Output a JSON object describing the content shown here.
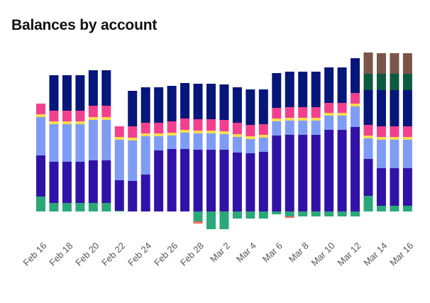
{
  "chart_data": {
    "type": "bar",
    "stacked": true,
    "title": "Balances by account",
    "xlabel": "",
    "ylabel": "",
    "grid": false,
    "legend": "none",
    "categories": [
      "Feb 16",
      "Feb 17",
      "Feb 18",
      "Feb 19",
      "Feb 20",
      "Feb 21",
      "Feb 22",
      "Feb 23",
      "Feb 24",
      "Feb 25",
      "Feb 26",
      "Feb 27",
      "Feb 28",
      "Mar 1",
      "Mar 2",
      "Mar 3",
      "Mar 4",
      "Mar 5",
      "Mar 6",
      "Mar 7",
      "Mar 8",
      "Mar 9",
      "Mar 10",
      "Mar 11",
      "Mar 12",
      "Mar 13",
      "Mar 14",
      "Mar 15",
      "Mar 16"
    ],
    "tick_labels": [
      "Feb 16",
      "Feb 18",
      "Feb 20",
      "Feb 22",
      "Feb 24",
      "Feb 26",
      "Feb 28",
      "Mar 2",
      "Mar 4",
      "Mar 6",
      "Mar 8",
      "Mar 10",
      "Mar 12",
      "Mar 14",
      "Mar 16"
    ],
    "series": [
      {
        "color": "#2aa878",
        "values": [
          21,
          12,
          12,
          12,
          12,
          12,
          1,
          0,
          0,
          0,
          0,
          0,
          -14,
          -25,
          -25,
          -10,
          -10,
          -10,
          -4,
          -7,
          -7,
          -7,
          -7,
          -7,
          -7,
          22,
          8,
          8,
          8
        ]
      },
      {
        "color": "#3112a8",
        "values": [
          58,
          58,
          58,
          58,
          60,
          60,
          43,
          43,
          52,
          86,
          88,
          88,
          87,
          87,
          87,
          83,
          82,
          84,
          107,
          108,
          108,
          108,
          115,
          115,
          119,
          52,
          53,
          53,
          53
        ]
      },
      {
        "color": "#7f9cf5",
        "values": [
          54,
          53,
          53,
          53,
          57,
          57,
          57,
          57,
          54,
          20,
          19,
          23,
          23,
          23,
          22,
          22,
          20,
          20,
          20,
          20,
          20,
          20,
          20,
          20,
          29,
          29,
          40,
          40,
          40
        ]
      },
      {
        "color": "#f8dc4c",
        "values": [
          4,
          4,
          4,
          4,
          4,
          4,
          4,
          4,
          4,
          4,
          4,
          4,
          4,
          4,
          4,
          4,
          4,
          4,
          4,
          4,
          4,
          4,
          4,
          4,
          4,
          4,
          4,
          4,
          4
        ]
      },
      {
        "color": "#f2408f",
        "values": [
          15,
          15,
          15,
          15,
          16,
          16,
          15,
          16,
          15,
          15,
          16,
          16,
          16,
          16,
          16,
          16,
          16,
          15,
          15,
          15,
          15,
          15,
          14,
          14,
          15,
          15,
          15,
          15,
          15
        ]
      },
      {
        "color": "#06167a",
        "values": [
          0,
          50,
          50,
          50,
          50,
          50,
          0,
          50,
          50,
          50,
          50,
          50,
          50,
          50,
          50,
          50,
          50,
          49,
          49,
          50,
          50,
          50,
          50,
          50,
          49,
          49,
          51,
          51,
          51
        ]
      },
      {
        "color": "#0c5a3e",
        "values": [
          0,
          0,
          0,
          0,
          0,
          0,
          0,
          0,
          0,
          0,
          0,
          0,
          0,
          0,
          0,
          0,
          0,
          0,
          0,
          0,
          0,
          0,
          0,
          0,
          0,
          23,
          23,
          23,
          23
        ]
      },
      {
        "color": "#7a5548",
        "values": [
          0,
          0,
          0,
          0,
          0,
          0,
          0,
          0,
          0,
          0,
          0,
          0,
          0,
          0,
          0,
          0,
          0,
          0,
          0,
          0,
          0,
          0,
          0,
          0,
          0,
          30,
          29,
          29,
          29
        ]
      },
      {
        "color": "#ef6a5a",
        "values": [
          0,
          0,
          0,
          0,
          0,
          0,
          0,
          0,
          0,
          0,
          0,
          0,
          -3,
          0,
          0,
          0,
          0,
          0,
          0,
          -2,
          0,
          0,
          0,
          0,
          0,
          0,
          0,
          0,
          0
        ]
      }
    ]
  }
}
